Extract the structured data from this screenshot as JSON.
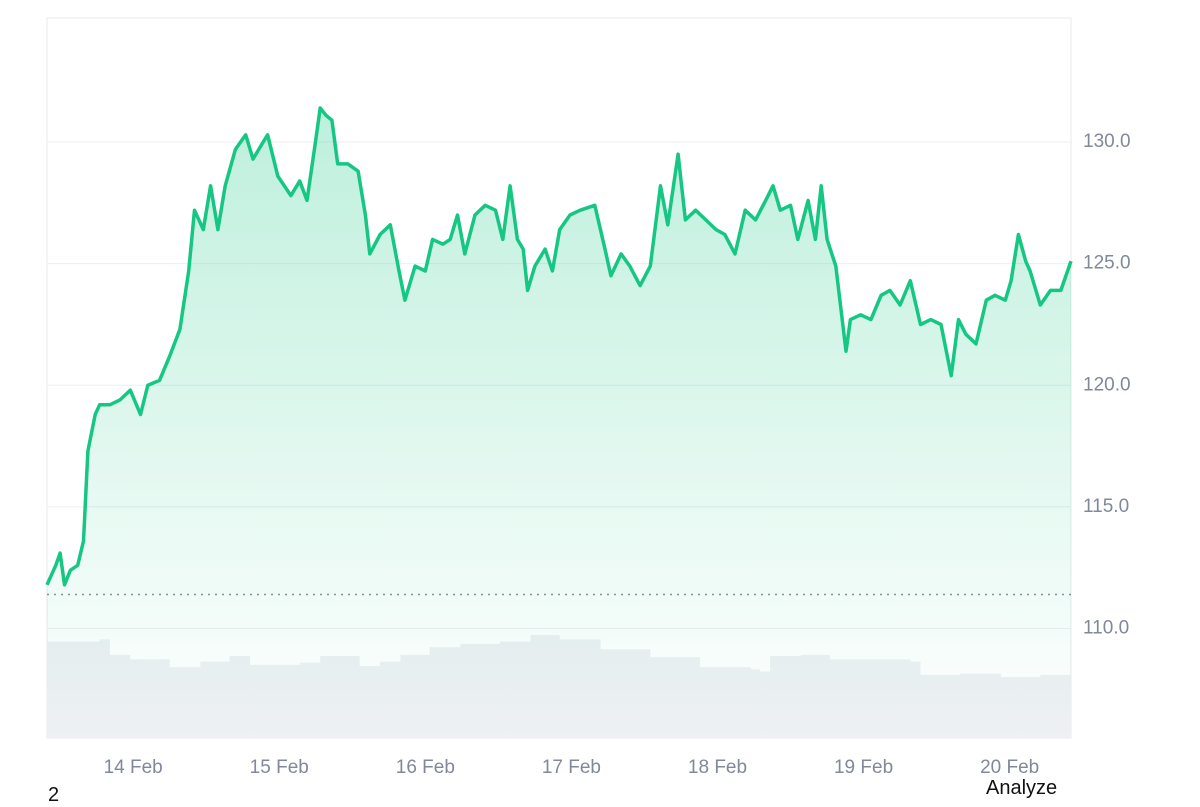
{
  "chart_data": {
    "type": "line",
    "series": [
      {
        "color": "#16c784",
        "x": [
          13.41,
          13.47,
          13.5,
          13.53,
          13.57,
          13.62,
          13.66,
          13.69,
          13.74,
          13.77,
          13.84,
          13.91,
          13.98,
          14.05,
          14.1,
          14.18,
          14.25,
          14.32,
          14.38,
          14.42,
          14.48,
          14.53,
          14.58,
          14.63,
          14.7,
          14.77,
          14.82,
          14.88,
          14.92,
          14.99,
          15.08,
          15.14,
          15.19,
          15.25,
          15.28,
          15.32,
          15.36,
          15.4,
          15.47,
          15.54,
          15.59,
          15.62,
          15.69,
          15.76,
          15.82,
          15.86,
          15.93,
          16.0,
          16.05,
          16.12,
          16.17,
          16.22,
          16.27,
          16.34,
          16.41,
          16.48,
          16.53,
          16.58,
          16.63,
          16.67,
          16.7,
          16.75,
          16.82,
          16.87,
          16.92,
          16.99,
          17.06,
          17.16,
          17.23,
          17.27,
          17.34,
          17.4,
          17.47,
          17.54,
          17.61,
          17.66,
          17.73,
          17.78,
          17.85,
          17.92,
          17.99,
          18.05,
          18.12,
          18.19,
          18.26,
          18.33,
          18.38,
          18.43,
          18.5,
          18.55,
          18.62,
          18.67,
          18.71,
          18.75,
          18.81,
          18.88,
          18.91,
          18.98,
          19.05,
          19.12,
          19.18,
          19.25,
          19.32,
          19.39,
          19.46,
          19.53,
          19.6,
          19.65,
          19.7,
          19.77,
          19.84,
          19.9,
          19.97,
          20.01,
          20.06,
          20.11,
          20.14,
          20.21,
          20.28,
          20.35,
          20.42
        ],
        "values": [
          111.8,
          112.6,
          113.1,
          111.8,
          112.4,
          112.6,
          113.6,
          117.3,
          118.8,
          119.2,
          119.2,
          119.4,
          119.8,
          118.8,
          120.0,
          120.2,
          121.2,
          122.3,
          124.7,
          127.2,
          126.4,
          128.2,
          126.4,
          128.2,
          129.7,
          130.3,
          129.3,
          129.9,
          130.3,
          128.6,
          127.8,
          128.4,
          127.6,
          130.1,
          131.4,
          131.1,
          130.9,
          129.1,
          129.1,
          128.8,
          127.0,
          125.4,
          126.2,
          126.6,
          124.7,
          123.5,
          124.9,
          124.7,
          126.0,
          125.8,
          126.0,
          127.0,
          125.4,
          127.0,
          127.4,
          127.2,
          126.0,
          128.2,
          126.0,
          125.6,
          123.9,
          124.9,
          125.6,
          124.7,
          126.4,
          127.0,
          127.2,
          127.4,
          125.6,
          124.5,
          125.4,
          124.9,
          124.1,
          124.9,
          128.2,
          126.6,
          129.5,
          126.8,
          127.2,
          126.8,
          126.4,
          126.2,
          125.4,
          127.2,
          126.8,
          127.6,
          128.2,
          127.2,
          127.4,
          126.0,
          127.6,
          126.0,
          128.2,
          126.0,
          124.9,
          121.4,
          122.7,
          122.9,
          122.7,
          123.7,
          123.9,
          123.3,
          124.3,
          122.5,
          122.7,
          122.5,
          120.4,
          122.7,
          122.1,
          121.7,
          123.5,
          123.7,
          123.5,
          124.3,
          126.2,
          125.1,
          124.7,
          123.3,
          123.9,
          123.9,
          125.1
        ]
      },
      {
        "color": "#eef0f3",
        "axis": "y2",
        "x": [
          13.41,
          13.77,
          13.84,
          13.98,
          14.25,
          14.46,
          14.66,
          14.8,
          15.14,
          15.28,
          15.49,
          15.55,
          15.69,
          15.83,
          16.03,
          16.24,
          16.51,
          16.72,
          16.92,
          17.2,
          17.54,
          17.88,
          18.23,
          18.29,
          18.36,
          18.57,
          18.77,
          18.98,
          19.25,
          19.32,
          19.39,
          19.53,
          19.66,
          19.94,
          20.21,
          20.42
        ],
        "values": [
          87,
          89,
          75,
          71,
          64,
          69,
          74,
          66,
          68,
          74,
          74,
          65,
          69,
          75,
          82,
          85,
          87,
          93,
          89,
          80,
          73,
          64,
          62,
          60,
          74,
          75,
          71,
          71,
          71,
          69,
          57,
          57,
          58,
          55,
          57,
          59
        ]
      }
    ],
    "xlim": [
      13.41,
      20.42
    ],
    "xticks": [
      {
        "value": 14,
        "label": "14 Feb"
      },
      {
        "value": 15,
        "label": "15 Feb"
      },
      {
        "value": 16,
        "label": "16 Feb"
      },
      {
        "value": 17,
        "label": "17 Feb"
      },
      {
        "value": 18,
        "label": "18 Feb"
      },
      {
        "value": 19,
        "label": "19 Feb"
      },
      {
        "value": 20,
        "label": "20 Feb"
      }
    ],
    "ylim": [
      105.5,
      135.1
    ],
    "yticks": [
      {
        "value": 110,
        "label": "110.0"
      },
      {
        "value": 115,
        "label": "115.0"
      },
      {
        "value": 120,
        "label": "120.0"
      },
      {
        "value": 125,
        "label": "125.0"
      },
      {
        "value": 130,
        "label": "130.0"
      }
    ],
    "y2lim": [
      0,
      650
    ],
    "reference_line": 111.4,
    "grid": true
  },
  "footer": {
    "left": "2",
    "button": "Analyze"
  }
}
